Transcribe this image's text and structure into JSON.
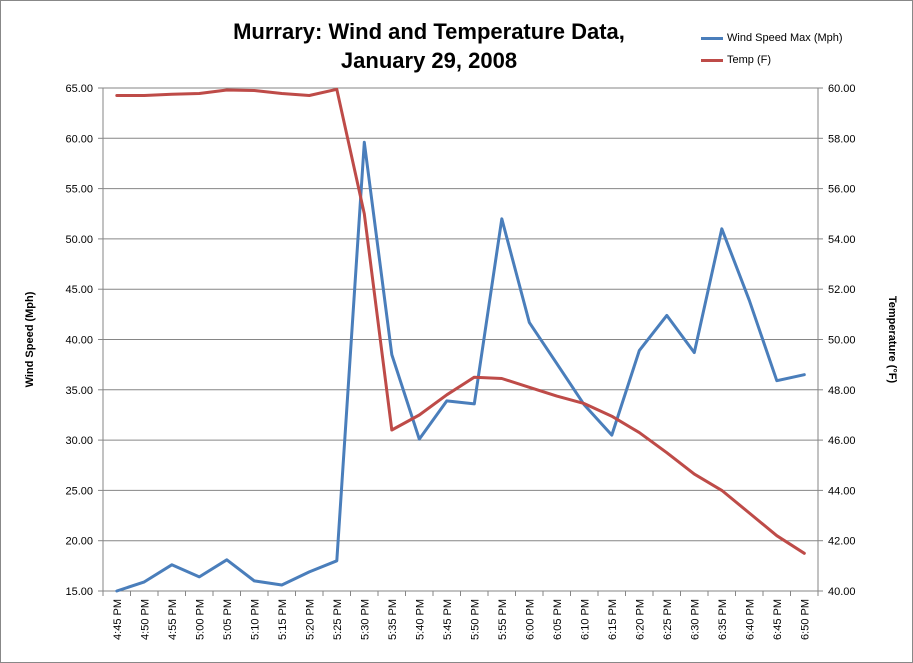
{
  "chart_data": {
    "type": "line",
    "title_lines": [
      "Murrary: Wind and Temperature Data,",
      "January 29, 2008"
    ],
    "ylabel_left": "Wind Speed (Mph)",
    "ylabel_right": "Temperature (°F)",
    "ylim_left": [
      15,
      65
    ],
    "ylim_right": [
      40,
      60
    ],
    "yticks_left": [
      "15.00",
      "20.00",
      "25.00",
      "30.00",
      "35.00",
      "40.00",
      "45.00",
      "50.00",
      "55.00",
      "60.00",
      "65.00"
    ],
    "yticks_right": [
      "40.00",
      "42.00",
      "44.00",
      "46.00",
      "48.00",
      "50.00",
      "52.00",
      "54.00",
      "56.00",
      "58.00",
      "60.00"
    ],
    "grid": true,
    "legend_position": "top-right",
    "categories": [
      "4:45 PM",
      "4:50 PM",
      "4:55 PM",
      "5:00 PM",
      "5:05 PM",
      "5:10 PM",
      "5:15 PM",
      "5:20 PM",
      "5:25 PM",
      "5:30 PM",
      "5:35 PM",
      "5:40 PM",
      "5:45 PM",
      "5:50 PM",
      "5:55 PM",
      "6:00 PM",
      "6:05 PM",
      "6:10 PM",
      "6:15 PM",
      "6:20 PM",
      "6:25 PM",
      "6:30 PM",
      "6:35 PM",
      "6:40 PM",
      "6:45 PM",
      "6:50 PM"
    ],
    "series": [
      {
        "name": "Wind Speed Max  (Mph)",
        "axis": "left",
        "color": "#4a7ebb",
        "values": [
          15.0,
          15.9,
          17.6,
          16.4,
          18.1,
          16.0,
          15.6,
          16.9,
          18.0,
          59.6,
          38.5,
          30.1,
          33.9,
          33.6,
          52.0,
          41.7,
          37.6,
          33.5,
          30.5,
          38.9,
          42.4,
          38.7,
          51.0,
          43.9,
          35.9,
          36.5
        ]
      },
      {
        "name": "Temp (F)",
        "axis": "right",
        "color": "#be4b48",
        "values": [
          59.7,
          59.7,
          59.75,
          59.78,
          59.92,
          59.9,
          59.78,
          59.7,
          59.95,
          55.0,
          46.4,
          47.0,
          47.8,
          48.5,
          48.45,
          48.1,
          47.75,
          47.45,
          46.95,
          46.3,
          45.5,
          44.65,
          44.0,
          43.1,
          42.2,
          41.5
        ]
      }
    ]
  }
}
